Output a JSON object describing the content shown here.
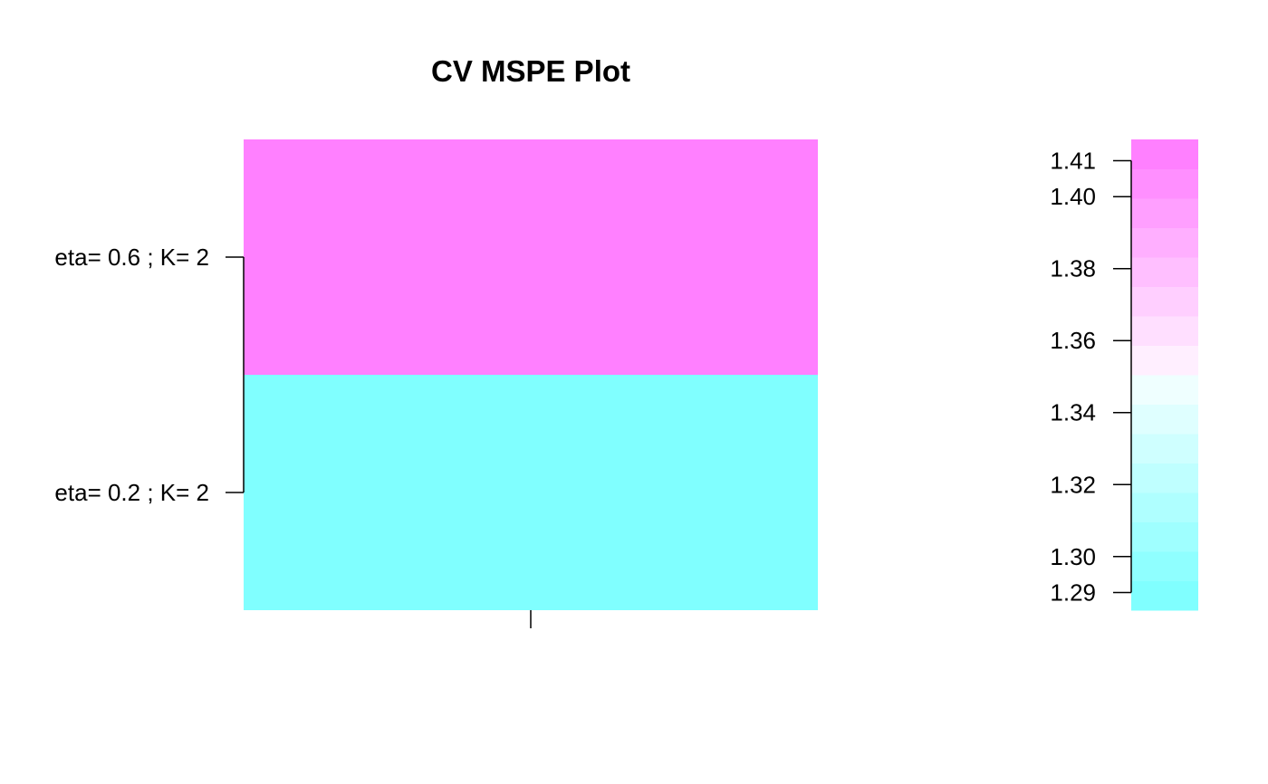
{
  "chart_data": {
    "type": "heatmap",
    "title": "CV MSPE Plot",
    "xlabel": "",
    "ylabel": "",
    "grid": false,
    "x_categories": [
      ""
    ],
    "y_categories": [
      "eta= 0.6 ; K= 2",
      "eta= 0.2 ; K= 2"
    ],
    "cells": [
      {
        "row": "eta= 0.6 ; K= 2",
        "col": "",
        "value": 1.41
      },
      {
        "row": "eta= 0.2 ; K= 2",
        "col": "",
        "value": 1.285
      }
    ],
    "colorbar": {
      "ticks": [
        "1.41",
        "1.40",
        "1.38",
        "1.36",
        "1.34",
        "1.32",
        "1.30",
        "1.29"
      ],
      "tick_values": [
        1.41,
        1.4,
        1.38,
        1.36,
        1.34,
        1.32,
        1.3,
        1.29
      ],
      "range": [
        1.2851,
        1.4159
      ],
      "colors": [
        "#80FFFF",
        "#8FFFFF",
        "#9FFFFF",
        "#AFFFFF",
        "#BFFFFF",
        "#CFFFFF",
        "#DFFFFF",
        "#EFFFFF",
        "#FFEFFF",
        "#FFDFFF",
        "#FFCFFF",
        "#FFBFFF",
        "#FFAFFF",
        "#FF9FFF",
        "#FF8FFF",
        "#FF80FF"
      ]
    }
  }
}
